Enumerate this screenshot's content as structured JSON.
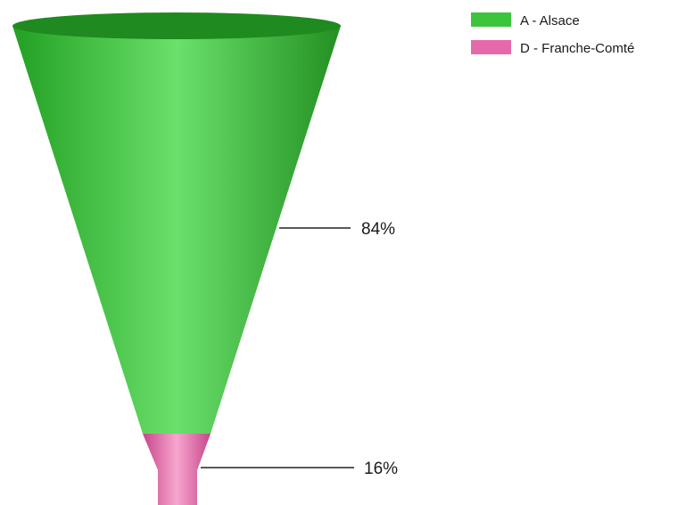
{
  "chart_data": {
    "type": "funnel",
    "title": "",
    "legend_position": "top-right",
    "series": [
      {
        "name": "A - Alsace",
        "value": 84,
        "label": "84%",
        "color": "#3cc43c"
      },
      {
        "name": "D - Franche-Comté",
        "value": 16,
        "label": "16%",
        "color": "#e66aab"
      }
    ]
  }
}
